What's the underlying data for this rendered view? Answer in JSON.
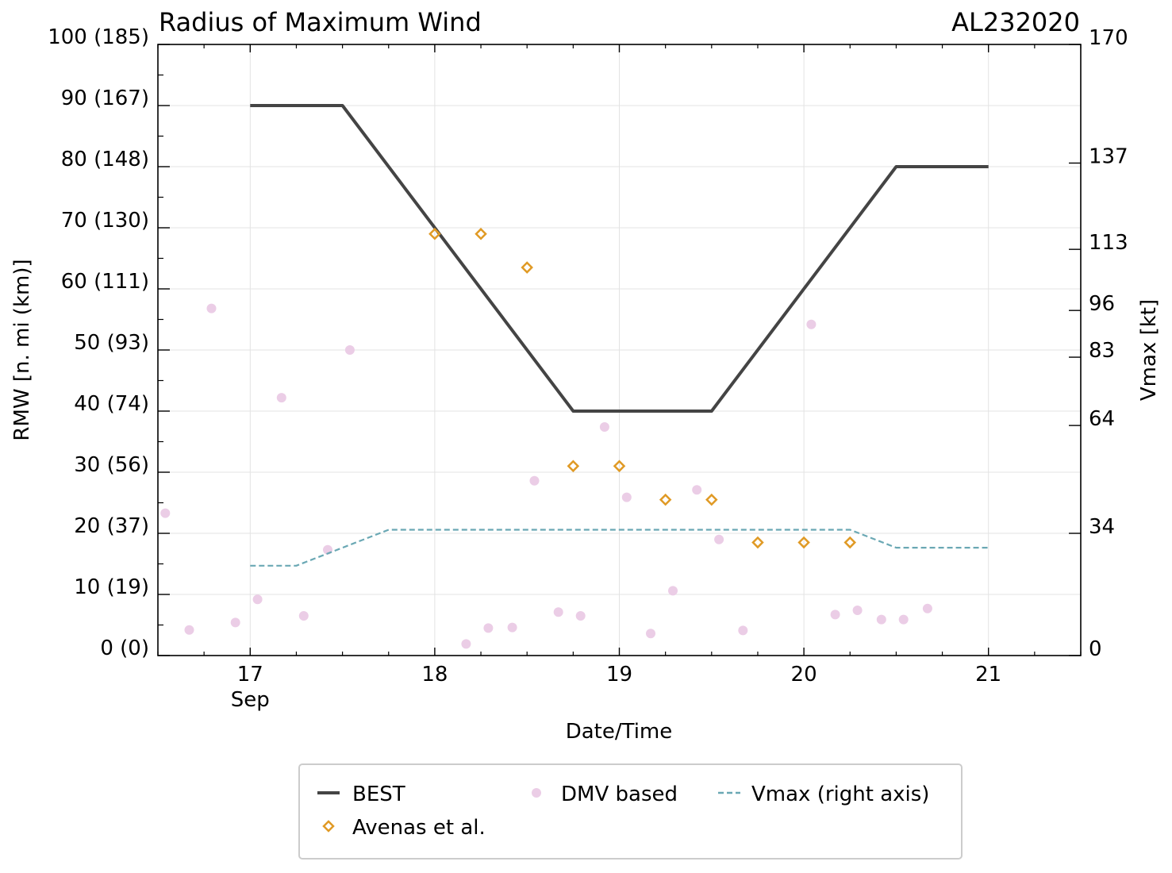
{
  "chart_data": {
    "type": "line",
    "title": "Radius of Maximum Wind",
    "storm_id": "AL232020",
    "xlabel": "Date/Time",
    "ylabel": "RMW [n. mi (km)]",
    "y2label": "Vmax [kt]",
    "xlim": [
      16.5,
      21.5
    ],
    "ylim": [
      0,
      100
    ],
    "y2lim": [
      0,
      170
    ],
    "grid": true,
    "x_ticks": [
      {
        "value": 17,
        "label": "17",
        "sublabel": "Sep"
      },
      {
        "value": 18,
        "label": "18",
        "sublabel": ""
      },
      {
        "value": 19,
        "label": "19",
        "sublabel": ""
      },
      {
        "value": 20,
        "label": "20",
        "sublabel": ""
      },
      {
        "value": 21,
        "label": "21",
        "sublabel": ""
      }
    ],
    "y_ticks": [
      {
        "value": 0,
        "label": "0 (0)"
      },
      {
        "value": 10,
        "label": "10 (19)"
      },
      {
        "value": 20,
        "label": "20 (37)"
      },
      {
        "value": 30,
        "label": "30 (56)"
      },
      {
        "value": 40,
        "label": "40 (74)"
      },
      {
        "value": 50,
        "label": "50 (93)"
      },
      {
        "value": 60,
        "label": "60 (111)"
      },
      {
        "value": 70,
        "label": "70 (130)"
      },
      {
        "value": 80,
        "label": "80 (148)"
      },
      {
        "value": 90,
        "label": "90 (167)"
      },
      {
        "value": 100,
        "label": "100 (185)"
      }
    ],
    "y2_ticks": [
      {
        "value": 0,
        "label": "0"
      },
      {
        "value": 34,
        "label": "34"
      },
      {
        "value": 64,
        "label": "64"
      },
      {
        "value": 83,
        "label": "83"
      },
      {
        "value": 96,
        "label": "96"
      },
      {
        "value": 113,
        "label": "113"
      },
      {
        "value": 137,
        "label": "137"
      },
      {
        "value": 170,
        "label": "170"
      }
    ],
    "series": [
      {
        "name": "BEST",
        "kind": "line",
        "color": "#444444",
        "x": [
          17.0,
          17.5,
          18.75,
          19.5,
          20.5,
          21.0
        ],
        "y": [
          90,
          90,
          40,
          40,
          80,
          80
        ]
      },
      {
        "name": "Avenas et al.",
        "kind": "diamond",
        "color": "#e09a25",
        "x": [
          18.0,
          18.25,
          18.5,
          18.75,
          19.0,
          19.25,
          19.5,
          19.75,
          20.0,
          20.25
        ],
        "y": [
          69,
          69,
          63.5,
          31,
          31,
          25.5,
          25.5,
          18.5,
          18.5,
          18.5
        ]
      },
      {
        "name": "DMV based",
        "kind": "dot",
        "color": "#ebcde6",
        "x": [
          16.54,
          16.67,
          16.79,
          16.92,
          17.04,
          17.17,
          17.29,
          17.42,
          17.54,
          18.17,
          18.29,
          18.42,
          18.54,
          18.67,
          18.79,
          18.92,
          19.04,
          19.17,
          19.29,
          19.42,
          19.54,
          19.67,
          20.04,
          20.17,
          20.29,
          20.42,
          20.54,
          20.67
        ],
        "y": [
          23.3,
          4.2,
          56.8,
          5.4,
          9.2,
          42.2,
          6.5,
          17.3,
          50,
          1.9,
          4.5,
          4.6,
          28.6,
          7.1,
          6.5,
          37.4,
          25.9,
          3.6,
          10.6,
          27.1,
          19,
          4.1,
          54.2,
          6.7,
          7.4,
          5.9,
          5.9,
          7.7
        ]
      },
      {
        "name": "Vmax (right axis)",
        "kind": "dashed",
        "color": "#6aa8b4",
        "axis": "right",
        "x": [
          17.0,
          17.25,
          17.75,
          20.25,
          20.5,
          21.0
        ],
        "y": [
          25,
          25,
          35,
          35,
          30,
          30
        ]
      }
    ],
    "legend": {
      "placement": "bottom-center",
      "entries": [
        "BEST",
        "DMV based",
        "Vmax (right axis)",
        "Avenas et al."
      ]
    }
  }
}
